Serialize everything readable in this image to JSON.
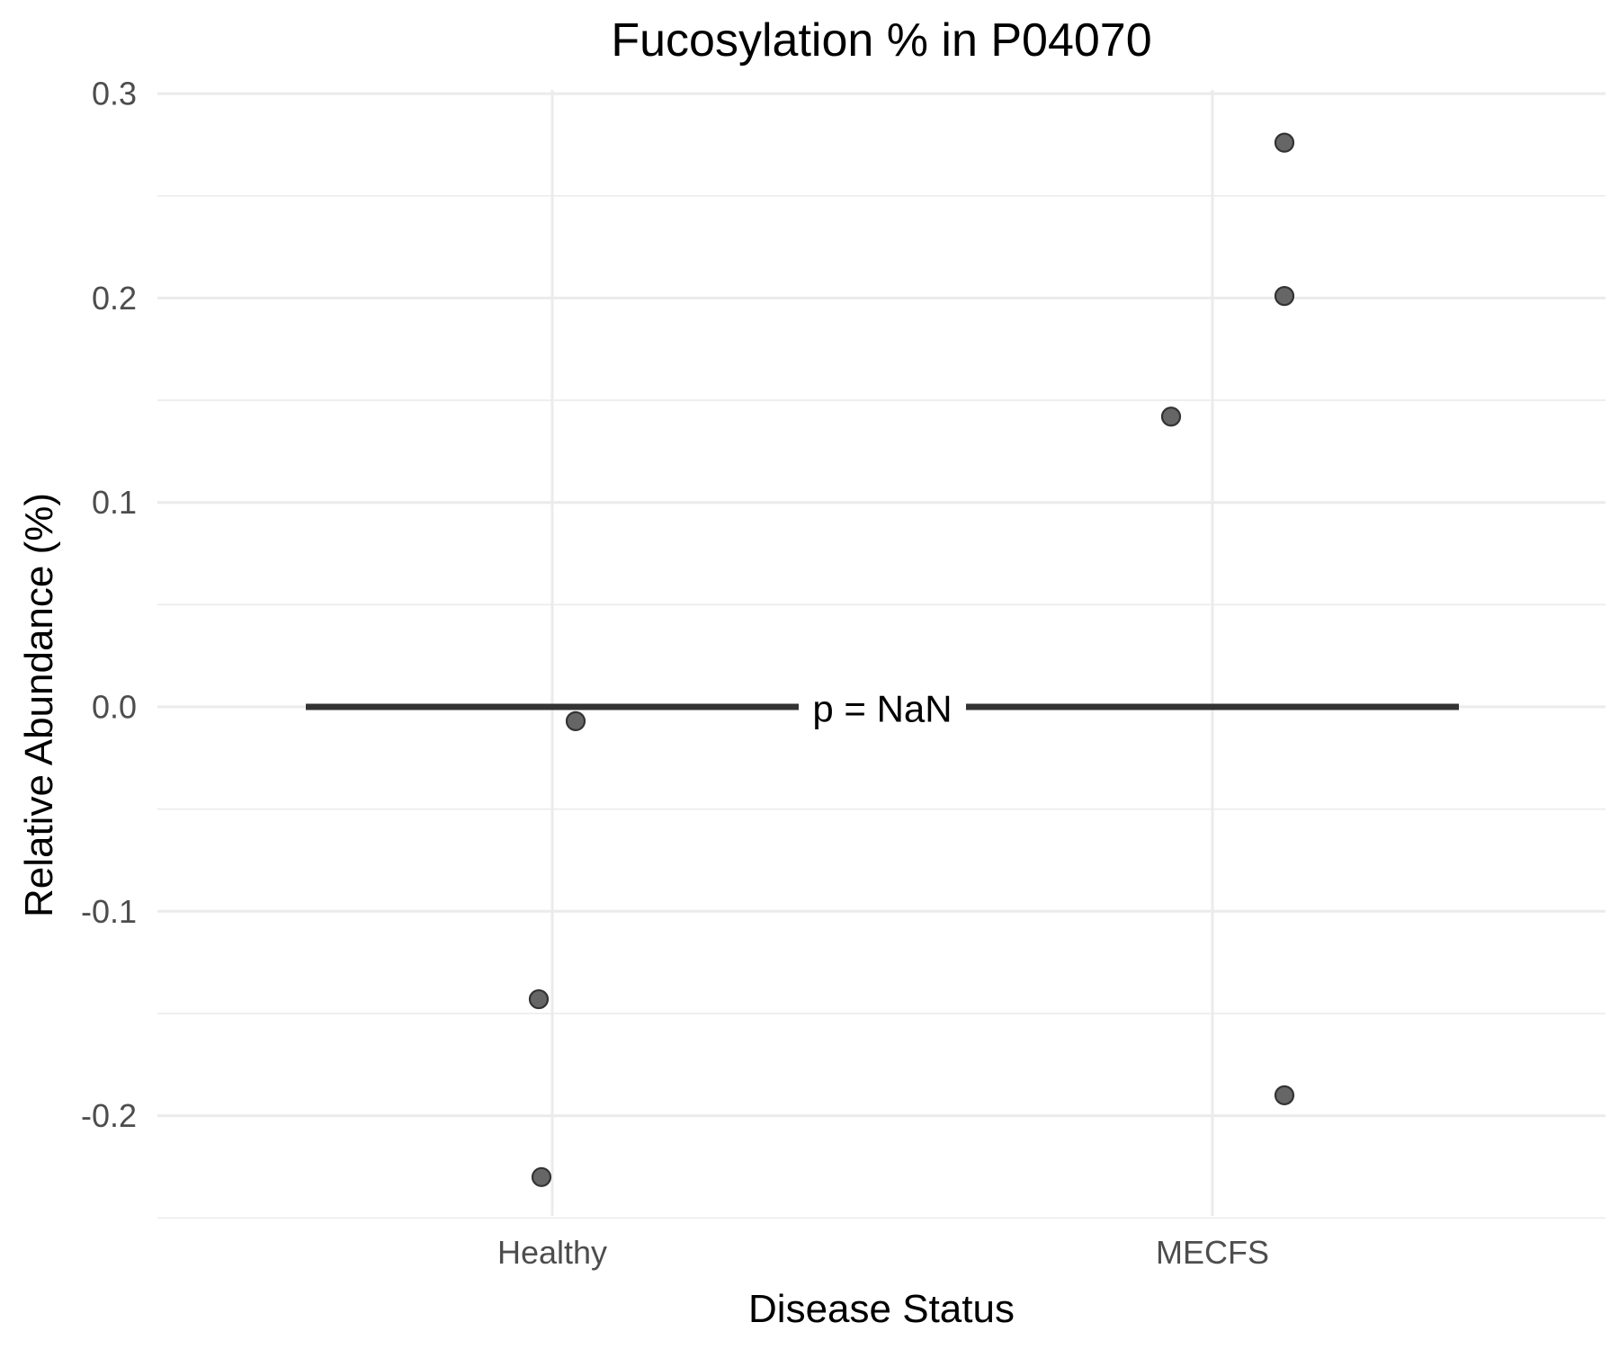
{
  "chart_data": {
    "type": "scatter",
    "title": "Fucosylation % in P04070",
    "xlabel": "Disease Status",
    "ylabel": "Relative Abundance (%)",
    "categories": [
      "Healthy",
      "MECFS"
    ],
    "ylim": [
      -0.25,
      0.3
    ],
    "yticks": [
      0.3,
      0.2,
      0.1,
      0.0,
      -0.1,
      -0.2
    ],
    "ytick_labels": [
      "0.3",
      "0.2",
      "0.1",
      "0.0",
      "-0.1",
      "-0.2"
    ],
    "grid": true,
    "points": [
      {
        "category": "Healthy",
        "y": -0.007
      },
      {
        "category": "Healthy",
        "y": -0.143
      },
      {
        "category": "Healthy",
        "y": -0.23
      },
      {
        "category": "MECFS",
        "y": 0.276
      },
      {
        "category": "MECFS",
        "y": 0.201
      },
      {
        "category": "MECFS",
        "y": 0.142
      },
      {
        "category": "MECFS",
        "y": -0.19
      }
    ],
    "comparison": {
      "from": "Healthy",
      "to": "MECFS",
      "y": 0.0,
      "label": "p = NaN"
    },
    "point_color": "#666666"
  }
}
